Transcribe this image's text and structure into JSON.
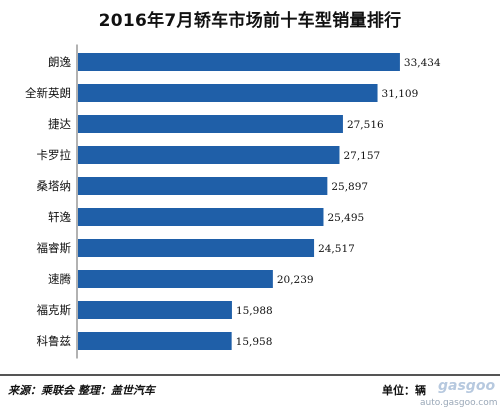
{
  "chart_data": {
    "type": "bar",
    "orientation": "horizontal",
    "title": "2016年7月轿车市场前十车型销量排行",
    "categories": [
      "朗逸",
      "全新英朗",
      "捷达",
      "卡罗拉",
      "桑塔纳",
      "轩逸",
      "福睿斯",
      "速腾",
      "福克斯",
      "科鲁兹"
    ],
    "values": [
      33434,
      31109,
      27516,
      27157,
      25897,
      25495,
      24517,
      20239,
      15988,
      15958
    ],
    "value_labels": [
      "33,434",
      "31,109",
      "27,516",
      "27,157",
      "25,897",
      "25,495",
      "24,517",
      "20,239",
      "15,988",
      "15,958"
    ],
    "xlim": [
      0,
      35000
    ],
    "bar_color": "#1f5fa8",
    "grid": false
  },
  "footer": {
    "source": "来源：乘联会 整理：盖世汽车",
    "unit": "单位：辆"
  },
  "watermark": {
    "logo": "gasgoo",
    "url": "auto.gasgoo.com"
  }
}
